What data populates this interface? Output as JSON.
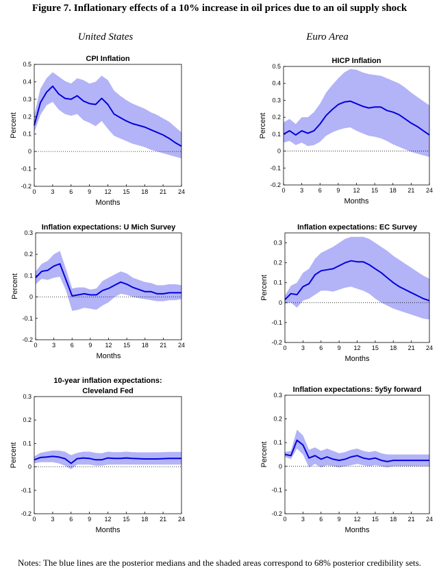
{
  "figure_title": "Figure 7. Inflationary effects of a 10% increase in oil prices due to an oil supply shock",
  "column_headers": [
    "United States",
    "Euro Area"
  ],
  "notes": "Notes: The blue lines are the posterior medians and the shaded areas correspond to 68% posterior credibility sets.",
  "colors": {
    "median": "#0000dd",
    "band": "#b3b3f7"
  },
  "chart_data": [
    {
      "type": "area",
      "title": [
        "CPI Inflation"
      ],
      "xlabel": "Months",
      "ylabel": "Percent",
      "xticks": [
        0,
        3,
        6,
        9,
        12,
        15,
        18,
        21,
        24
      ],
      "ylim": [
        -0.2,
        0.5
      ],
      "yticks": [
        -0.2,
        -0.1,
        0,
        0.1,
        0.2,
        0.3,
        0.4,
        0.5
      ],
      "ytick_labels": [
        "-0.2",
        "-0.1",
        "0",
        "0.1",
        "0.2",
        "0.3",
        "0.4",
        "0.5"
      ],
      "x": [
        0,
        1,
        2,
        3,
        4,
        5,
        6,
        7,
        8,
        9,
        10,
        11,
        12,
        13,
        14,
        15,
        16,
        17,
        18,
        19,
        20,
        21,
        22,
        23,
        24
      ],
      "series": [
        {
          "values": [
            0.15,
            0.28,
            0.34,
            0.375,
            0.33,
            0.305,
            0.3,
            0.32,
            0.29,
            0.275,
            0.27,
            0.305,
            0.27,
            0.215,
            0.195,
            0.175,
            0.16,
            0.15,
            0.14,
            0.125,
            0.11,
            0.095,
            0.075,
            0.05,
            0.03
          ]
        },
        {
          "values": [
            0.11,
            0.21,
            0.265,
            0.285,
            0.24,
            0.215,
            0.205,
            0.215,
            0.18,
            0.165,
            0.145,
            0.175,
            0.13,
            0.09,
            0.075,
            0.06,
            0.045,
            0.035,
            0.025,
            0.01,
            0.0,
            -0.01,
            -0.02,
            -0.03,
            -0.04
          ]
        },
        {
          "values": [
            0.21,
            0.36,
            0.42,
            0.455,
            0.43,
            0.405,
            0.39,
            0.42,
            0.41,
            0.39,
            0.4,
            0.435,
            0.41,
            0.35,
            0.32,
            0.295,
            0.275,
            0.26,
            0.245,
            0.225,
            0.21,
            0.19,
            0.17,
            0.14,
            0.11
          ]
        }
      ]
    },
    {
      "type": "area",
      "title": [
        "HICP Inflation"
      ],
      "xlabel": "Months",
      "ylabel": "Percent",
      "xticks": [
        0,
        3,
        6,
        9,
        12,
        15,
        18,
        21,
        24
      ],
      "ylim": [
        -0.2,
        0.5
      ],
      "yticks": [
        -0.2,
        -0.1,
        0,
        0.1,
        0.2,
        0.3,
        0.4,
        0.5
      ],
      "ytick_labels": [
        "-0.2",
        "-0.1",
        "0",
        "0.1",
        "0.2",
        "0.3",
        "0.4",
        "0.5"
      ],
      "x": [
        0,
        1,
        2,
        3,
        4,
        5,
        6,
        7,
        8,
        9,
        10,
        11,
        12,
        13,
        14,
        15,
        16,
        17,
        18,
        19,
        20,
        21,
        22,
        23,
        24
      ],
      "series": [
        {
          "values": [
            0.1,
            0.12,
            0.095,
            0.12,
            0.105,
            0.12,
            0.16,
            0.21,
            0.245,
            0.275,
            0.29,
            0.295,
            0.28,
            0.265,
            0.255,
            0.26,
            0.26,
            0.24,
            0.23,
            0.215,
            0.19,
            0.165,
            0.145,
            0.12,
            0.095
          ]
        },
        {
          "values": [
            0.05,
            0.06,
            0.035,
            0.05,
            0.03,
            0.035,
            0.055,
            0.09,
            0.11,
            0.125,
            0.135,
            0.14,
            0.12,
            0.105,
            0.09,
            0.085,
            0.075,
            0.06,
            0.04,
            0.025,
            0.01,
            -0.005,
            -0.015,
            -0.025,
            -0.035
          ]
        },
        {
          "values": [
            0.17,
            0.19,
            0.16,
            0.2,
            0.2,
            0.23,
            0.28,
            0.345,
            0.39,
            0.43,
            0.465,
            0.485,
            0.48,
            0.465,
            0.455,
            0.45,
            0.445,
            0.43,
            0.415,
            0.4,
            0.375,
            0.345,
            0.32,
            0.295,
            0.27
          ]
        }
      ]
    },
    {
      "type": "area",
      "title": [
        "Inflation expectations: U Mich Survey"
      ],
      "xlabel": "Months",
      "ylabel": "Percent",
      "xticks": [
        0,
        3,
        6,
        9,
        12,
        15,
        18,
        21,
        24
      ],
      "ylim": [
        -0.2,
        0.3
      ],
      "yticks": [
        -0.2,
        -0.1,
        0,
        0.1,
        0.2,
        0.3
      ],
      "ytick_labels": [
        "-0.2",
        "-0.1",
        "0",
        "0.1",
        "0.2",
        "0.3"
      ],
      "x": [
        0,
        1,
        2,
        3,
        4,
        5,
        6,
        7,
        8,
        9,
        10,
        11,
        12,
        13,
        14,
        15,
        16,
        17,
        18,
        19,
        20,
        21,
        22,
        23,
        24
      ],
      "series": [
        {
          "values": [
            0.09,
            0.12,
            0.125,
            0.145,
            0.155,
            0.08,
            0.005,
            0.01,
            0.015,
            0.01,
            0.01,
            0.03,
            0.04,
            0.055,
            0.07,
            0.06,
            0.045,
            0.035,
            0.025,
            0.025,
            0.015,
            0.015,
            0.02,
            0.02,
            0.02
          ]
        },
        {
          "values": [
            0.06,
            0.085,
            0.08,
            0.09,
            0.095,
            0.03,
            -0.065,
            -0.06,
            -0.05,
            -0.055,
            -0.06,
            -0.04,
            -0.025,
            0.0,
            0.015,
            0.01,
            0.0,
            -0.005,
            -0.01,
            -0.015,
            -0.02,
            -0.02,
            -0.015,
            -0.015,
            -0.01
          ]
        },
        {
          "values": [
            0.12,
            0.155,
            0.17,
            0.2,
            0.215,
            0.13,
            0.04,
            0.045,
            0.045,
            0.035,
            0.04,
            0.075,
            0.09,
            0.105,
            0.12,
            0.11,
            0.09,
            0.08,
            0.07,
            0.065,
            0.055,
            0.055,
            0.06,
            0.06,
            0.055
          ]
        }
      ]
    },
    {
      "type": "area",
      "title": [
        "Inflation expectations: EC Survey"
      ],
      "xlabel": "Months",
      "ylabel": "Percent",
      "xticks": [
        0,
        3,
        6,
        9,
        12,
        15,
        18,
        21,
        24
      ],
      "ylim": [
        -0.2,
        0.35
      ],
      "yticks": [
        -0.2,
        -0.1,
        0,
        0.1,
        0.2,
        0.3
      ],
      "ytick_labels": [
        "-0.2",
        "-0.1",
        "0",
        "0.1",
        "0.2",
        "0.3"
      ],
      "x": [
        0,
        1,
        2,
        3,
        4,
        5,
        6,
        7,
        8,
        9,
        10,
        11,
        12,
        13,
        14,
        15,
        16,
        17,
        18,
        19,
        20,
        21,
        22,
        23,
        24
      ],
      "series": [
        {
          "values": [
            0.015,
            0.045,
            0.04,
            0.08,
            0.095,
            0.14,
            0.16,
            0.165,
            0.17,
            0.185,
            0.2,
            0.21,
            0.205,
            0.205,
            0.19,
            0.17,
            0.15,
            0.125,
            0.1,
            0.08,
            0.065,
            0.05,
            0.035,
            0.02,
            0.01
          ]
        },
        {
          "values": [
            -0.005,
            0.0,
            -0.025,
            0.01,
            0.02,
            0.04,
            0.06,
            0.06,
            0.055,
            0.065,
            0.075,
            0.08,
            0.07,
            0.06,
            0.045,
            0.02,
            0.0,
            -0.015,
            -0.03,
            -0.04,
            -0.05,
            -0.06,
            -0.07,
            -0.08,
            -0.085
          ]
        },
        {
          "values": [
            0.035,
            0.085,
            0.1,
            0.15,
            0.17,
            0.22,
            0.25,
            0.265,
            0.28,
            0.3,
            0.32,
            0.33,
            0.33,
            0.33,
            0.32,
            0.3,
            0.28,
            0.26,
            0.235,
            0.215,
            0.195,
            0.175,
            0.155,
            0.135,
            0.12
          ]
        }
      ]
    },
    {
      "type": "area",
      "title": [
        "10-year inflation expectations:",
        "Cleveland Fed"
      ],
      "xlabel": "Months",
      "ylabel": "Percent",
      "xticks": [
        0,
        3,
        6,
        9,
        12,
        15,
        18,
        21,
        24
      ],
      "ylim": [
        -0.2,
        0.3
      ],
      "yticks": [
        -0.2,
        -0.1,
        0,
        0.1,
        0.2,
        0.3
      ],
      "ytick_labels": [
        "-0.2",
        "-0.1",
        "0",
        "0.1",
        "0.2",
        "0.3"
      ],
      "x": [
        0,
        1,
        2,
        3,
        4,
        5,
        6,
        7,
        8,
        9,
        10,
        11,
        12,
        13,
        14,
        15,
        16,
        17,
        18,
        19,
        20,
        21,
        22,
        23,
        24
      ],
      "series": [
        {
          "values": [
            0.03,
            0.04,
            0.042,
            0.045,
            0.042,
            0.035,
            0.015,
            0.035,
            0.038,
            0.036,
            0.03,
            0.03,
            0.038,
            0.036,
            0.036,
            0.038,
            0.036,
            0.035,
            0.034,
            0.034,
            0.034,
            0.035,
            0.036,
            0.036,
            0.036
          ]
        },
        {
          "values": [
            0.015,
            0.02,
            0.02,
            0.02,
            0.015,
            0.005,
            -0.01,
            0.01,
            0.01,
            0.01,
            0.005,
            0.005,
            0.01,
            0.01,
            0.01,
            0.01,
            0.01,
            0.01,
            0.01,
            0.01,
            0.01,
            0.01,
            0.01,
            0.01,
            0.01
          ]
        },
        {
          "values": [
            0.045,
            0.06,
            0.065,
            0.07,
            0.07,
            0.065,
            0.05,
            0.06,
            0.065,
            0.065,
            0.06,
            0.058,
            0.065,
            0.063,
            0.063,
            0.065,
            0.063,
            0.062,
            0.062,
            0.062,
            0.062,
            0.063,
            0.064,
            0.064,
            0.064
          ]
        }
      ]
    },
    {
      "type": "area",
      "title": [
        "Inflation expectations: 5y5y forward"
      ],
      "xlabel": "Months",
      "ylabel": "Percent",
      "xticks": [
        0,
        3,
        6,
        9,
        12,
        15,
        18,
        21,
        24
      ],
      "ylim": [
        -0.2,
        0.3
      ],
      "yticks": [
        -0.2,
        -0.1,
        0,
        0.1,
        0.2,
        0.3
      ],
      "ytick_labels": [
        "-0.2",
        "-0.1",
        "0",
        "0.1",
        "0.2",
        "0.3"
      ],
      "x": [
        0,
        1,
        2,
        3,
        4,
        5,
        6,
        7,
        8,
        9,
        10,
        11,
        12,
        13,
        14,
        15,
        16,
        17,
        18,
        19,
        20,
        21,
        22,
        23,
        24
      ],
      "series": [
        {
          "values": [
            0.05,
            0.045,
            0.11,
            0.09,
            0.035,
            0.045,
            0.03,
            0.04,
            0.03,
            0.025,
            0.03,
            0.04,
            0.045,
            0.035,
            0.03,
            0.035,
            0.025,
            0.02,
            0.025,
            0.025,
            0.025,
            0.025,
            0.025,
            0.025,
            0.025
          ]
        },
        {
          "values": [
            0.04,
            0.03,
            0.075,
            0.05,
            -0.005,
            0.01,
            -0.005,
            0.005,
            0.0,
            -0.005,
            0.0,
            0.005,
            0.01,
            0.005,
            0.0,
            0.005,
            0.0,
            -0.005,
            0.0,
            0.0,
            0.0,
            0.0,
            0.0,
            0.0,
            0.0
          ]
        },
        {
          "values": [
            0.06,
            0.065,
            0.155,
            0.13,
            0.07,
            0.08,
            0.065,
            0.075,
            0.065,
            0.055,
            0.06,
            0.07,
            0.075,
            0.065,
            0.06,
            0.065,
            0.055,
            0.05,
            0.05,
            0.05,
            0.05,
            0.05,
            0.05,
            0.05,
            0.05
          ]
        }
      ]
    }
  ]
}
